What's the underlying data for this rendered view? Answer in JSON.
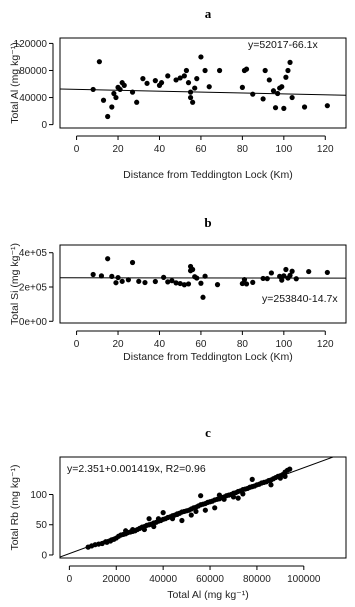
{
  "chart_data": [
    {
      "type": "scatter",
      "panel": "a",
      "xlabel": "Distance from Teddington Lock (Km)",
      "ylabel": "Total Al (mg kg⁻¹)",
      "xlim": [
        -8,
        130
      ],
      "ylim": [
        -5000,
        128000
      ],
      "xticks": [
        0,
        20,
        40,
        60,
        80,
        100,
        120
      ],
      "xtick_labels": [
        "0",
        "20",
        "40",
        "60",
        "80",
        "100",
        "120"
      ],
      "yticks": [
        0,
        40000,
        80000,
        120000
      ],
      "ytick_labels": [
        "0",
        "40000",
        "80000",
        "120000"
      ],
      "annotation": "y=52017-66.1x",
      "fit": {
        "intercept": 52017,
        "slope": -66.1
      },
      "x": [
        8,
        11,
        13,
        15,
        17,
        18,
        19,
        20,
        21,
        22,
        23,
        27,
        29,
        32,
        34,
        38,
        40,
        41,
        44,
        48,
        50,
        52,
        53,
        54,
        55,
        55,
        56,
        57,
        58,
        60,
        62,
        64,
        69,
        80,
        81,
        82,
        85,
        90,
        91,
        93,
        95,
        96,
        97,
        98,
        99,
        100,
        101,
        102,
        103,
        104,
        110,
        121
      ],
      "y": [
        52000,
        93000,
        36000,
        12000,
        26000,
        46000,
        40000,
        55000,
        52000,
        62000,
        58000,
        48000,
        33000,
        68000,
        61000,
        65000,
        58000,
        62000,
        72000,
        66000,
        69000,
        72000,
        80000,
        62000,
        48000,
        40000,
        33000,
        54000,
        68000,
        100000,
        80000,
        56000,
        80000,
        55000,
        80000,
        82000,
        45000,
        38000,
        80000,
        66000,
        50000,
        25000,
        46000,
        54000,
        56000,
        24000,
        70000,
        80000,
        92000,
        40000,
        26000,
        28000
      ]
    },
    {
      "type": "scatter",
      "panel": "b",
      "xlabel": "Distance from Teddington Lock (Km)",
      "ylabel": "Total Si (mg kg⁻¹)",
      "xlim": [
        -8,
        130
      ],
      "ylim": [
        -10000,
        445000
      ],
      "xticks": [
        0,
        20,
        40,
        60,
        80,
        100,
        120
      ],
      "xtick_labels": [
        "0",
        "20",
        "40",
        "60",
        "80",
        "100",
        "120"
      ],
      "yticks": [
        0,
        200000,
        400000
      ],
      "ytick_labels": [
        "0e+00",
        "2e+05",
        "4e+05"
      ],
      "annotation": "y=253840-14.7x",
      "fit": {
        "intercept": 253840,
        "slope": -14.7
      },
      "x": [
        8,
        12,
        15,
        17,
        19,
        20,
        22,
        25,
        27,
        30,
        33,
        38,
        42,
        44,
        46,
        48,
        50,
        52,
        54,
        55,
        55,
        56,
        57,
        58,
        60,
        61,
        62,
        68,
        80,
        81,
        82,
        85,
        90,
        92,
        94,
        98,
        99,
        100,
        101,
        102,
        103,
        104,
        106,
        112,
        121
      ],
      "y": [
        273000,
        265000,
        365000,
        262000,
        225000,
        255000,
        233000,
        242000,
        343000,
        233000,
        226000,
        232000,
        256000,
        230000,
        237000,
        224000,
        220000,
        213000,
        218000,
        295000,
        320000,
        302000,
        260000,
        252000,
        222000,
        140000,
        263000,
        214000,
        220000,
        243000,
        218000,
        227000,
        250000,
        249000,
        282000,
        262000,
        240000,
        265000,
        302000,
        252000,
        268000,
        292000,
        248000,
        290000,
        285000
      ]
    },
    {
      "type": "scatter",
      "panel": "c",
      "xlabel": "Total Al (mg kg⁻¹)",
      "ylabel": "Total Rb (mg kg⁻¹)",
      "xlim": [
        -4000,
        118000
      ],
      "ylim": [
        -5,
        162
      ],
      "xticks": [
        0,
        20000,
        40000,
        60000,
        80000,
        100000
      ],
      "xtick_labels": [
        "0",
        "20000",
        "40000",
        "60000",
        "80000",
        "100000"
      ],
      "yticks": [
        0,
        50,
        100
      ],
      "ytick_labels": [
        "0",
        "50",
        "100"
      ],
      "annotation": "y=2.351+0.001419x, R2=0.96",
      "fit": {
        "intercept": 2.351,
        "slope": 0.001419
      },
      "x": [
        8000,
        9500,
        11000,
        12500,
        14000,
        15500,
        16000,
        17500,
        18000,
        19000,
        20000,
        21000,
        22000,
        23000,
        24000,
        25000,
        26000,
        27000,
        28000,
        29000,
        30000,
        31000,
        32000,
        33000,
        34000,
        35000,
        36000,
        37000,
        38000,
        39000,
        40000,
        41000,
        42000,
        43000,
        44000,
        45000,
        46000,
        47000,
        48000,
        49000,
        50000,
        51000,
        52000,
        53000,
        54000,
        55000,
        56000,
        57000,
        58000,
        59000,
        60000,
        61000,
        62000,
        63000,
        64000,
        65000,
        66000,
        67000,
        68000,
        69000,
        70000,
        71000,
        72000,
        73000,
        74000,
        75000,
        76000,
        77000,
        78000,
        79000,
        80000,
        81000,
        82000,
        83000,
        84000,
        85000,
        86000,
        87000,
        88000,
        89000,
        90000,
        91000,
        92000,
        93000,
        94000,
        32000,
        36000,
        44000,
        48000,
        52000,
        58000,
        62000,
        66000,
        70000,
        74000,
        34000,
        40000,
        56000,
        72000,
        78000,
        86000,
        90000,
        92000,
        24000,
        27000,
        38000,
        46000,
        54000,
        64000
      ],
      "y": [
        13,
        15,
        17,
        18,
        19,
        22,
        21,
        23,
        25,
        26,
        28,
        31,
        33,
        34,
        35,
        37,
        38,
        39,
        40,
        42,
        44,
        46,
        47,
        49,
        50,
        51,
        53,
        54,
        56,
        57,
        59,
        60,
        62,
        63,
        65,
        66,
        67,
        69,
        71,
        72,
        73,
        74,
        76,
        78,
        79,
        81,
        83,
        84,
        85,
        87,
        88,
        89,
        91,
        92,
        93,
        95,
        96,
        98,
        99,
        100,
        102,
        103,
        105,
        106,
        108,
        109,
        110,
        112,
        113,
        114,
        116,
        117,
        119,
        120,
        121,
        123,
        124,
        126,
        128,
        130,
        131,
        133,
        137,
        140,
        142,
        42,
        47,
        60,
        57,
        66,
        74,
        78,
        92,
        96,
        101,
        60,
        70,
        98,
        94,
        125,
        116,
        127,
        130,
        40,
        42,
        60,
        68,
        72,
        99
      ]
    }
  ]
}
